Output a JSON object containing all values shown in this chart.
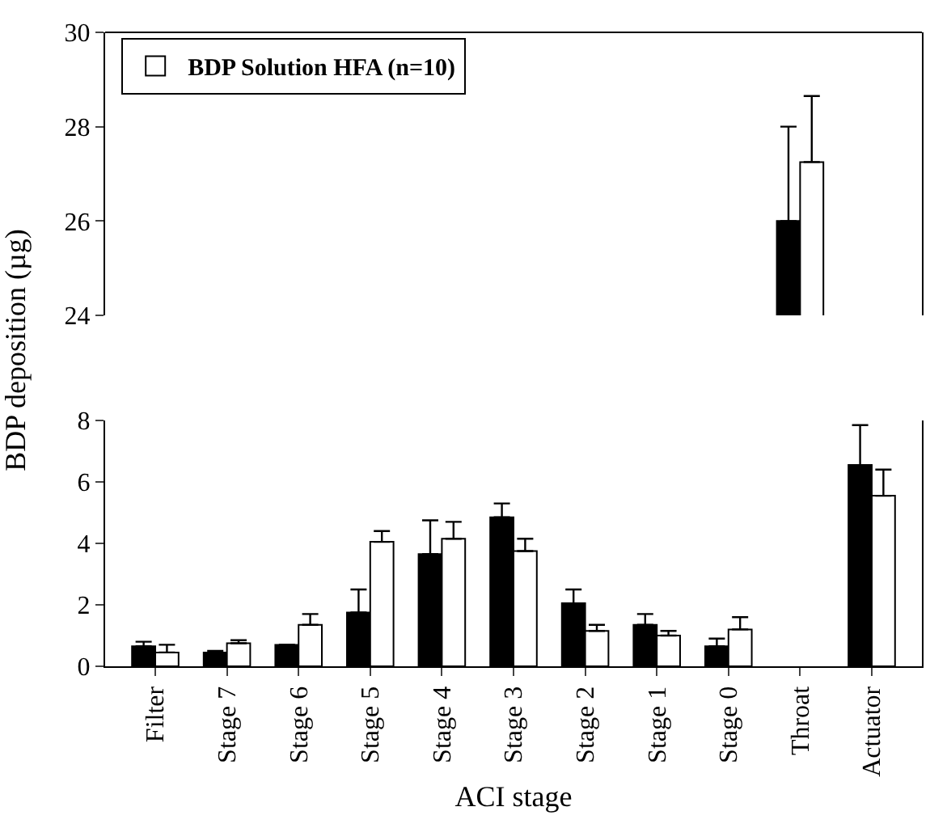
{
  "chart_data": [
    {
      "type": "bar",
      "categories": [
        null,
        null,
        null,
        null,
        null,
        null,
        null,
        null,
        null,
        null,
        null
      ],
      "ylim": [
        24,
        30
      ],
      "yticks": [
        24,
        26,
        28,
        30
      ],
      "tick_labels": "y",
      "legend": "top left",
      "grid": false,
      "series": [
        {
          "color": "#000000",
          "values": [
            null,
            null,
            null,
            null,
            null,
            null,
            null,
            null,
            null,
            26.0,
            null
          ],
          "errors": [
            null,
            null,
            null,
            null,
            null,
            null,
            null,
            null,
            null,
            [
              26.0,
              28.0
            ],
            null
          ]
        },
        {
          "name": "BDP Solution HFA (n=10)",
          "color": "#ffffff",
          "values": [
            null,
            null,
            null,
            null,
            null,
            null,
            null,
            null,
            null,
            27.25,
            null
          ],
          "errors": [
            null,
            null,
            null,
            null,
            null,
            null,
            null,
            null,
            null,
            [
              27.25,
              28.65
            ],
            null
          ]
        }
      ]
    },
    {
      "type": "bar",
      "categories": [
        "Filter",
        "Stage 7",
        "Stage 6",
        "Stage 5",
        "Stage 4",
        "Stage 3",
        "Stage 2",
        "Stage 1",
        "Stage 0",
        "Throat",
        "Actuator"
      ],
      "xlabel": "ACI stage",
      "ylabel": "BDP deposition (µg)",
      "ylim": [
        0,
        8
      ],
      "yticks": [
        0,
        2,
        4,
        6,
        8
      ],
      "grid": false,
      "series": [
        {
          "color": "#000000",
          "values": [
            0.65,
            0.45,
            0.7,
            1.75,
            3.65,
            4.85,
            2.05,
            1.35,
            0.65,
            null,
            6.55
          ],
          "errors": [
            [
              0.65,
              0.8
            ],
            [
              0.45,
              0.5
            ],
            [
              0.7,
              0.7
            ],
            [
              1.75,
              2.5
            ],
            [
              3.65,
              4.75
            ],
            [
              4.85,
              5.3
            ],
            [
              2.05,
              2.5
            ],
            [
              1.35,
              1.7
            ],
            [
              0.65,
              0.9
            ],
            null,
            [
              6.55,
              7.85
            ]
          ]
        },
        {
          "color": "#ffffff",
          "values": [
            0.45,
            0.75,
            1.35,
            4.05,
            4.15,
            3.75,
            1.15,
            1.0,
            1.2,
            null,
            5.55
          ],
          "errors": [
            [
              0.45,
              0.7
            ],
            [
              0.75,
              0.85
            ],
            [
              1.35,
              1.7
            ],
            [
              4.05,
              4.4
            ],
            [
              4.15,
              4.7
            ],
            [
              3.75,
              4.15
            ],
            [
              1.15,
              1.35
            ],
            [
              1.0,
              1.15
            ],
            [
              1.2,
              1.6
            ],
            null,
            [
              5.55,
              6.4
            ]
          ]
        }
      ]
    }
  ]
}
